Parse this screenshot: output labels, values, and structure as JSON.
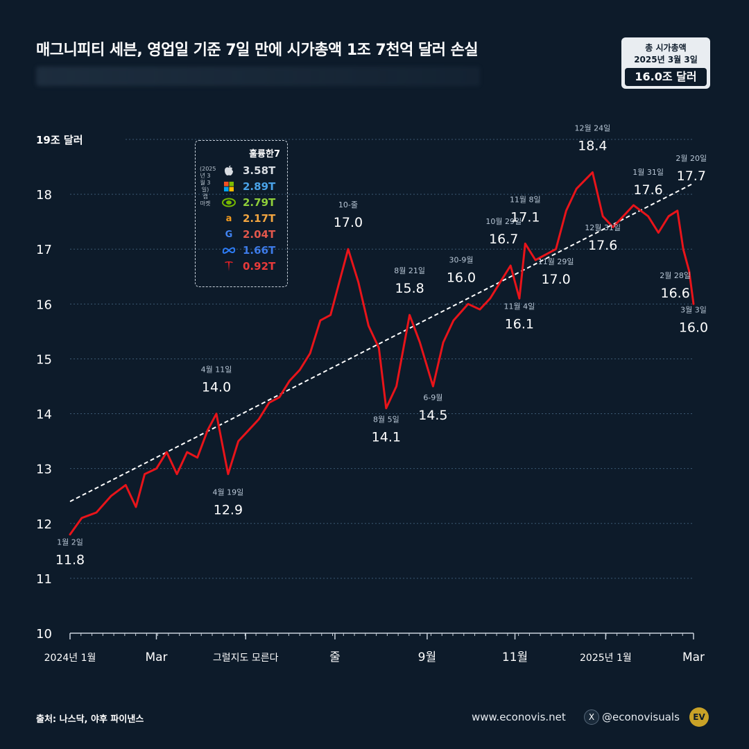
{
  "title": "매그니피티 세븐, 영업일 기준 7일 만에 시가총액 1조 7천억 달러 손실",
  "total_box": {
    "line1": "총 시가총액",
    "line2": "2025년 3월 3일",
    "value": "16.0조 달러"
  },
  "colors": {
    "background": "#0d1b2a",
    "line": "#e8141a",
    "trend": "#ffffff",
    "grid": "#3d5a73"
  },
  "legend": {
    "title": "훌륭한7",
    "side_label": "(2025년 3월 3일) 캡 마켓",
    "items": [
      {
        "icon": "apple-icon",
        "value": "3.58T",
        "color": "#d9dde2"
      },
      {
        "icon": "microsoft-icon",
        "value": "2.89T",
        "color": "#4aa3e8"
      },
      {
        "icon": "nvidia-icon",
        "value": "2.79T",
        "color": "#8fcf3a"
      },
      {
        "icon": "amazon-icon",
        "value": "2.17T",
        "color": "#f2a540"
      },
      {
        "icon": "google-icon",
        "value": "2.04T",
        "color": "#e2574c"
      },
      {
        "icon": "meta-icon",
        "value": "1.66T",
        "color": "#3d7be8"
      },
      {
        "icon": "tesla-icon",
        "value": "0.92T",
        "color": "#e83a3a"
      }
    ]
  },
  "chart_data": {
    "type": "line",
    "ylabel": "19조 달러",
    "ylim": [
      10,
      19
    ],
    "yticks": [
      "10",
      "11",
      "12",
      "13",
      "14",
      "15",
      "16",
      "17",
      "18"
    ],
    "xticks": [
      "2024년 1월",
      "Mar",
      "그럴지도 모른다",
      "줄",
      "9월",
      "11월",
      "2025년 1월",
      "Mar"
    ],
    "grid": true,
    "series": [
      {
        "values": [
          [
            "2024-01-02",
            11.8
          ],
          [
            "2024-01-10",
            12.1
          ],
          [
            "2024-01-20",
            12.2
          ],
          [
            "2024-01-30",
            12.5
          ],
          [
            "2024-02-09",
            12.7
          ],
          [
            "2024-02-16",
            12.3
          ],
          [
            "2024-02-22",
            12.9
          ],
          [
            "2024-03-01",
            13.0
          ],
          [
            "2024-03-08",
            13.3
          ],
          [
            "2024-03-15",
            12.9
          ],
          [
            "2024-03-22",
            13.3
          ],
          [
            "2024-03-29",
            13.2
          ],
          [
            "2024-04-05",
            13.7
          ],
          [
            "2024-04-11",
            14.0
          ],
          [
            "2024-04-19",
            12.9
          ],
          [
            "2024-04-26",
            13.5
          ],
          [
            "2024-05-03",
            13.7
          ],
          [
            "2024-05-10",
            13.9
          ],
          [
            "2024-05-17",
            14.2
          ],
          [
            "2024-05-24",
            14.3
          ],
          [
            "2024-05-31",
            14.6
          ],
          [
            "2024-06-07",
            14.8
          ],
          [
            "2024-06-14",
            15.1
          ],
          [
            "2024-06-21",
            15.7
          ],
          [
            "2024-06-28",
            15.8
          ],
          [
            "2024-07-05",
            16.5
          ],
          [
            "2024-07-10",
            17.0
          ],
          [
            "2024-07-17",
            16.4
          ],
          [
            "2024-07-24",
            15.6
          ],
          [
            "2024-07-31",
            15.2
          ],
          [
            "2024-08-05",
            14.1
          ],
          [
            "2024-08-12",
            14.5
          ],
          [
            "2024-08-21",
            15.8
          ],
          [
            "2024-08-28",
            15.3
          ],
          [
            "2024-09-06",
            14.5
          ],
          [
            "2024-09-13",
            15.3
          ],
          [
            "2024-09-20",
            15.7
          ],
          [
            "2024-09-30",
            16.0
          ],
          [
            "2024-10-08",
            15.9
          ],
          [
            "2024-10-15",
            16.1
          ],
          [
            "2024-10-22",
            16.4
          ],
          [
            "2024-10-29",
            16.7
          ],
          [
            "2024-11-04",
            16.1
          ],
          [
            "2024-11-08",
            17.1
          ],
          [
            "2024-11-15",
            16.8
          ],
          [
            "2024-11-22",
            16.9
          ],
          [
            "2024-11-29",
            17.0
          ],
          [
            "2024-12-06",
            17.7
          ],
          [
            "2024-12-13",
            18.1
          ],
          [
            "2024-12-24",
            18.4
          ],
          [
            "2024-12-31",
            17.6
          ],
          [
            "2025-01-07",
            17.4
          ],
          [
            "2025-01-14",
            17.6
          ],
          [
            "2025-01-21",
            17.8
          ],
          [
            "2025-01-31",
            17.6
          ],
          [
            "2025-02-07",
            17.3
          ],
          [
            "2025-02-14",
            17.6
          ],
          [
            "2025-02-20",
            17.7
          ],
          [
            "2025-02-24",
            17.0
          ],
          [
            "2025-02-28",
            16.6
          ],
          [
            "2025-03-03",
            16.0
          ]
        ]
      }
    ],
    "trend": [
      [
        "2024-01-02",
        12.4
      ],
      [
        "2025-03-03",
        18.2
      ]
    ],
    "annotations": [
      {
        "date_label": "1월 2일",
        "value_label": "11.8",
        "x": "2024-01-02",
        "y": 11.8
      },
      {
        "date_label": "4월 11일",
        "value_label": "14.0",
        "x": "2024-04-11",
        "y": 14.0
      },
      {
        "date_label": "4월 19일",
        "value_label": "12.9",
        "x": "2024-04-19",
        "y": 12.9
      },
      {
        "date_label": "10-줄",
        "value_label": "17.0",
        "x": "2024-07-10",
        "y": 17.0
      },
      {
        "date_label": "8월 5일",
        "value_label": "14.1",
        "x": "2024-08-05",
        "y": 14.1
      },
      {
        "date_label": "8월 21일",
        "value_label": "15.8",
        "x": "2024-08-21",
        "y": 15.8
      },
      {
        "date_label": "6-9월",
        "value_label": "14.5",
        "x": "2024-09-06",
        "y": 14.5
      },
      {
        "date_label": "30-9월",
        "value_label": "16.0",
        "x": "2024-09-30",
        "y": 16.0
      },
      {
        "date_label": "10월 29일",
        "value_label": "16.7",
        "x": "2024-10-29",
        "y": 16.7
      },
      {
        "date_label": "11월 4일",
        "value_label": "16.1",
        "x": "2024-11-04",
        "y": 16.1
      },
      {
        "date_label": "11월 8일",
        "value_label": "17.1",
        "x": "2024-11-08",
        "y": 17.1
      },
      {
        "date_label": "11월 29일",
        "value_label": "17.0",
        "x": "2024-11-29",
        "y": 17.0
      },
      {
        "date_label": "12월 24일",
        "value_label": "18.4",
        "x": "2024-12-24",
        "y": 18.4
      },
      {
        "date_label": "12월 31일",
        "value_label": "17.6",
        "x": "2024-12-31",
        "y": 17.6
      },
      {
        "date_label": "1월 31일",
        "value_label": "17.6",
        "x": "2025-01-31",
        "y": 17.6
      },
      {
        "date_label": "2월 20일",
        "value_label": "17.7",
        "x": "2025-02-20",
        "y": 17.7
      },
      {
        "date_label": "2월 28일",
        "value_label": "16.6",
        "x": "2025-02-28",
        "y": 16.6
      },
      {
        "date_label": "3월 3일",
        "value_label": "16.0",
        "x": "2025-03-03",
        "y": 16.0
      }
    ]
  },
  "footer": {
    "source": "출처: 나스닥, 야후 파이낸스",
    "website": "www.econovis.net",
    "x_icon_text": "X",
    "handle": "@econovisuals",
    "logo_text": "EV"
  }
}
